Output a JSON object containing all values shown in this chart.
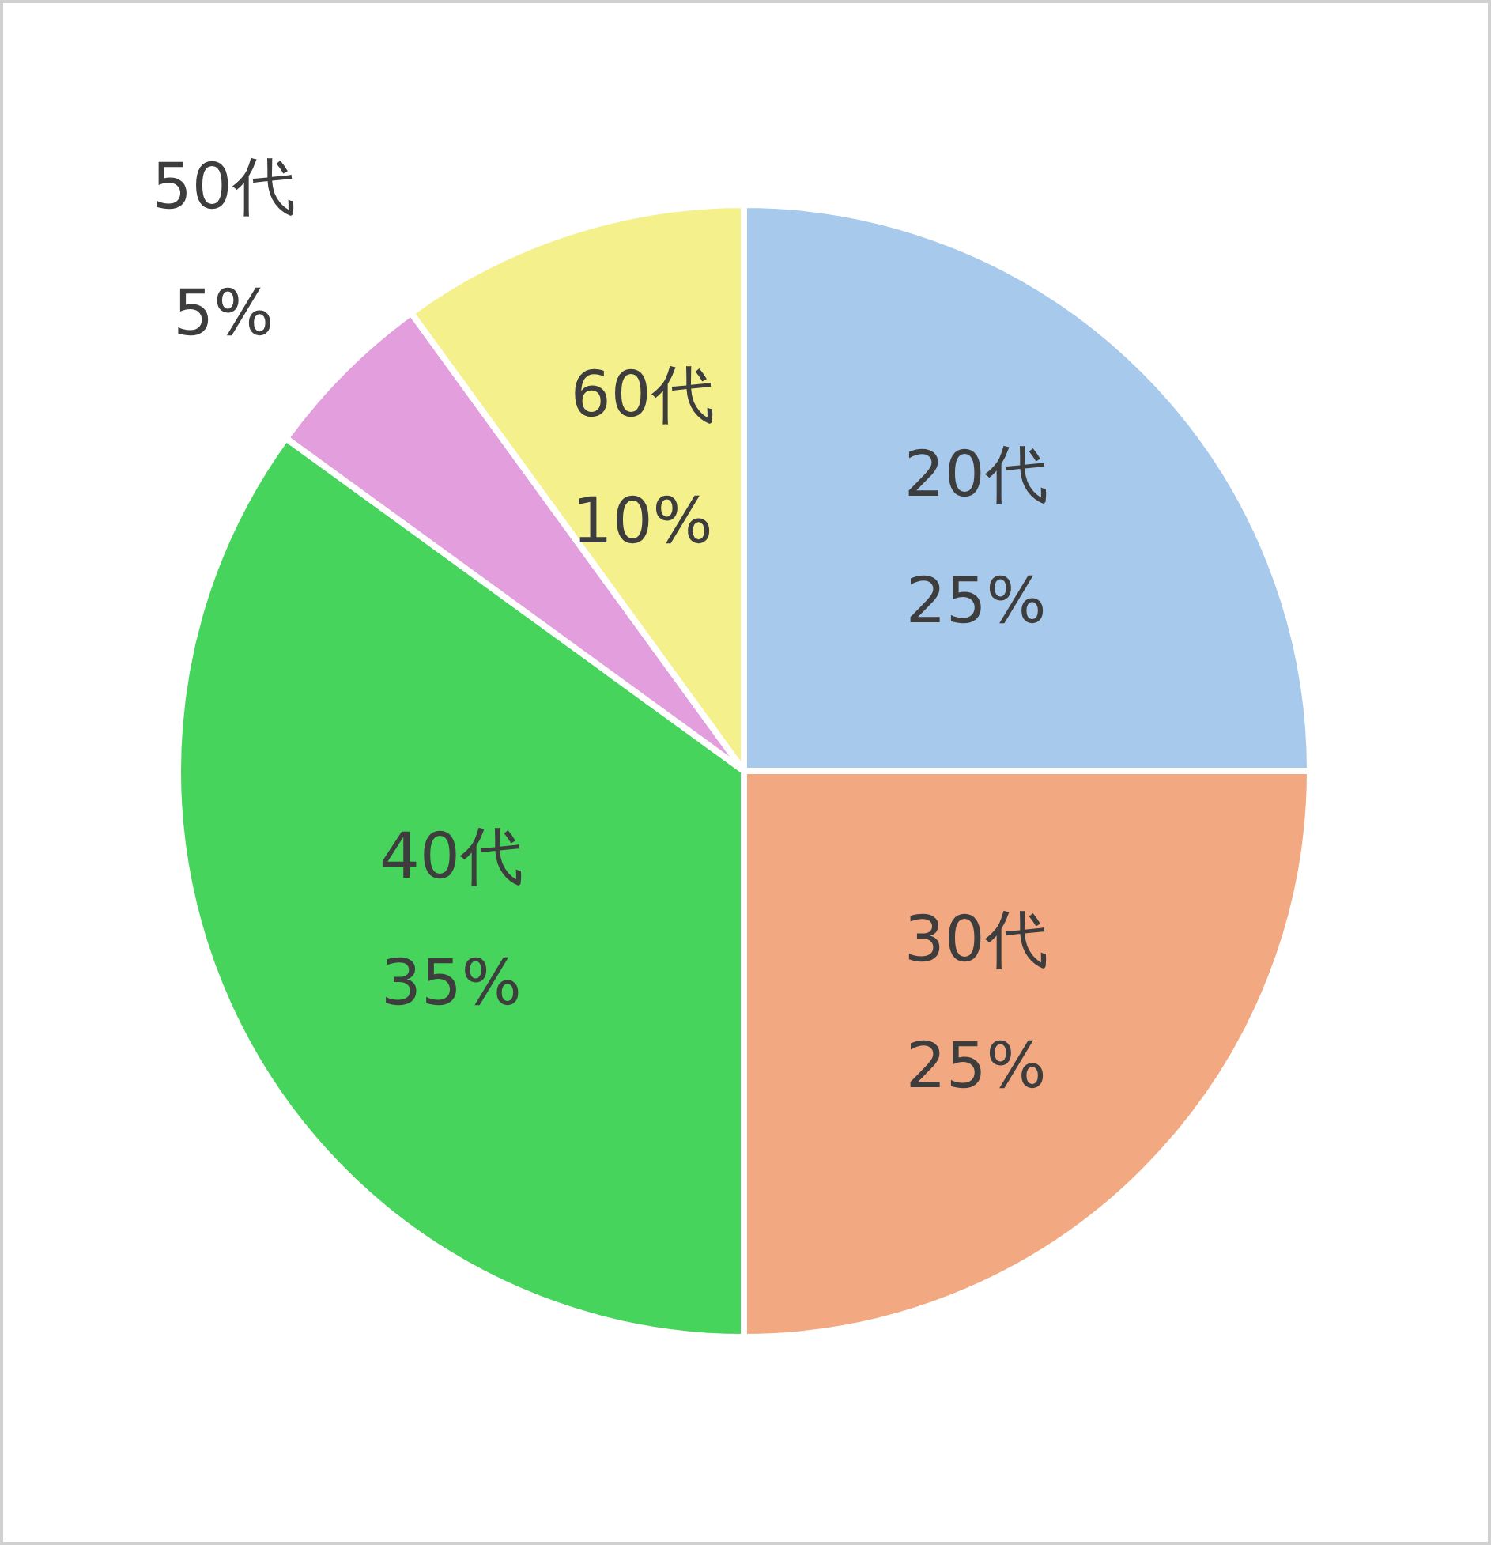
{
  "chart_data": {
    "type": "pie",
    "categories": [
      "20代",
      "30代",
      "40代",
      "50代",
      "60代"
    ],
    "values": [
      25,
      25,
      35,
      5,
      10
    ],
    "value_labels": [
      "25%",
      "25%",
      "35%",
      "5%",
      "10%"
    ],
    "colors": [
      "#a7c9eb",
      "#f2a982",
      "#47d45c",
      "#e39edd",
      "#f4f08c"
    ]
  }
}
